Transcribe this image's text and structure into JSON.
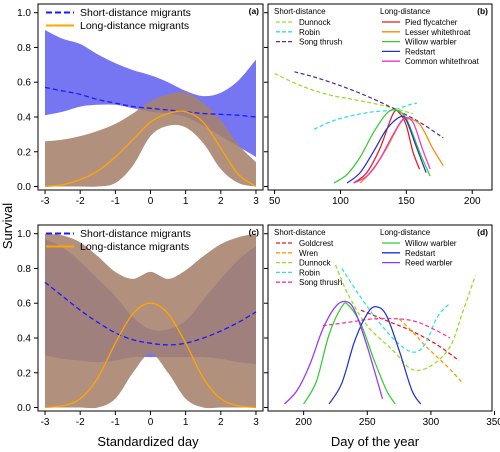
{
  "figure": {
    "ylabel": "Survival",
    "xlabel_left": "Standardized day",
    "xlabel_right": "Day of the year"
  },
  "chart_data": [
    {
      "type": "area",
      "panel_label": "(a)",
      "xlim": [
        -3.2,
        3.2
      ],
      "ylim": [
        -0.02,
        1.05
      ],
      "xticks": [
        -3,
        -2,
        -1,
        0,
        1,
        2,
        3
      ],
      "yticks": [
        0.0,
        0.2,
        0.4,
        0.6,
        0.8,
        1.0
      ],
      "x": [
        -3,
        -2.5,
        -2,
        -1.5,
        -1,
        -0.5,
        0,
        0.5,
        1,
        1.5,
        2,
        2.5,
        3
      ],
      "series": [
        {
          "name": "Short-distance migrants",
          "color": "#1a1aff",
          "dash": true,
          "band_color": "#6f6ff2",
          "values": [
            0.57,
            0.55,
            0.53,
            0.5,
            0.48,
            0.46,
            0.45,
            0.44,
            0.43,
            0.42,
            0.415,
            0.41,
            0.4
          ],
          "lower": [
            0.41,
            0.43,
            0.46,
            0.47,
            0.47,
            0.45,
            0.43,
            0.42,
            0.4,
            0.35,
            0.29,
            0.23,
            0.17
          ],
          "upper": [
            0.9,
            0.85,
            0.82,
            0.76,
            0.71,
            0.67,
            0.64,
            0.6,
            0.55,
            0.52,
            0.54,
            0.61,
            0.73
          ]
        },
        {
          "name": "Long-distance migrants",
          "color": "#ffa500",
          "dash": false,
          "band_color": "#a6826b",
          "values": [
            0.0,
            0.01,
            0.04,
            0.09,
            0.17,
            0.27,
            0.37,
            0.42,
            0.43,
            0.37,
            0.22,
            0.07,
            0.0
          ],
          "lower": [
            0.0,
            0.0,
            0.0,
            0.0,
            0.02,
            0.12,
            0.29,
            0.35,
            0.34,
            0.25,
            0.1,
            0.02,
            0.0
          ],
          "upper": [
            0.26,
            0.27,
            0.29,
            0.32,
            0.36,
            0.42,
            0.49,
            0.53,
            0.54,
            0.48,
            0.38,
            0.24,
            0.14
          ]
        }
      ]
    },
    {
      "type": "line",
      "panel_label": "(b)",
      "xlim": [
        45,
        215
      ],
      "ylim": [
        -0.02,
        1.05
      ],
      "xticks": [
        50,
        100,
        150,
        200
      ],
      "yticks": [
        0.0,
        0.2,
        0.4,
        0.6,
        0.8,
        1.0
      ],
      "legend_headers": [
        "Short-distance",
        "Long-distance"
      ],
      "series": [
        {
          "name": "Dunnock",
          "group": "short",
          "color": "#99dd22",
          "dash": true,
          "x": [
            50,
            70,
            90,
            110,
            130,
            150,
            155
          ],
          "values": [
            0.65,
            0.58,
            0.53,
            0.5,
            0.47,
            0.43,
            0.42
          ]
        },
        {
          "name": "Robin",
          "group": "short",
          "color": "#33ddee",
          "dash": true,
          "x": [
            80,
            95,
            110,
            125,
            140,
            152,
            158
          ],
          "values": [
            0.33,
            0.38,
            0.41,
            0.43,
            0.44,
            0.47,
            0.48
          ]
        },
        {
          "name": "Song thrush",
          "group": "short",
          "color": "#5a2d9c",
          "dash": true,
          "x": [
            65,
            80,
            100,
            120,
            140,
            160,
            178
          ],
          "values": [
            0.66,
            0.63,
            0.58,
            0.52,
            0.45,
            0.37,
            0.28
          ]
        },
        {
          "name": "Pied flycatcher",
          "group": "long",
          "color": "#e41a1c",
          "dash": false,
          "x": [
            110,
            120,
            130,
            140,
            145,
            150,
            155,
            160
          ],
          "values": [
            0.02,
            0.08,
            0.22,
            0.42,
            0.42,
            0.35,
            0.2,
            0.1
          ]
        },
        {
          "name": "Lesser whitethroat",
          "group": "long",
          "color": "#ff8800",
          "dash": false,
          "x": [
            115,
            125,
            135,
            145,
            150,
            160,
            170,
            178
          ],
          "values": [
            0.02,
            0.1,
            0.22,
            0.36,
            0.39,
            0.36,
            0.22,
            0.12
          ]
        },
        {
          "name": "Willow warbler",
          "group": "long",
          "color": "#33cc33",
          "dash": false,
          "x": [
            95,
            105,
            115,
            125,
            135,
            142,
            150,
            160,
            168
          ],
          "values": [
            0.02,
            0.07,
            0.17,
            0.31,
            0.42,
            0.44,
            0.39,
            0.2,
            0.06
          ]
        },
        {
          "name": "Redstart",
          "group": "long",
          "color": "#2233cc",
          "dash": false,
          "x": [
            105,
            115,
            125,
            135,
            145,
            150,
            158,
            165
          ],
          "values": [
            0.02,
            0.08,
            0.2,
            0.33,
            0.4,
            0.38,
            0.22,
            0.08
          ]
        },
        {
          "name": "Common whitethroat",
          "group": "long",
          "color": "#ee33cc",
          "dash": false,
          "x": [
            110,
            120,
            130,
            140,
            148,
            155,
            162,
            168
          ],
          "values": [
            0.02,
            0.06,
            0.16,
            0.3,
            0.39,
            0.37,
            0.22,
            0.1
          ]
        }
      ]
    },
    {
      "type": "area",
      "panel_label": "(c)",
      "xlim": [
        -3.2,
        3.2
      ],
      "ylim": [
        -0.02,
        1.05
      ],
      "xticks": [
        -3,
        -2,
        -1,
        0,
        1,
        2,
        3
      ],
      "yticks": [
        0.0,
        0.2,
        0.4,
        0.6,
        0.8,
        1.0
      ],
      "x": [
        -3,
        -2.5,
        -2,
        -1.5,
        -1,
        -0.5,
        0,
        0.5,
        1,
        1.5,
        2,
        2.5,
        3
      ],
      "series": [
        {
          "name": "Short-distance migrants",
          "color": "#1a1aff",
          "dash": true,
          "band_color": "#6f6ff2",
          "values": [
            0.72,
            0.64,
            0.56,
            0.49,
            0.43,
            0.39,
            0.37,
            0.36,
            0.37,
            0.4,
            0.44,
            0.49,
            0.55
          ],
          "lower": [
            0.3,
            0.28,
            0.27,
            0.26,
            0.27,
            0.29,
            0.29,
            0.29,
            0.29,
            0.29,
            0.28,
            0.26,
            0.25
          ],
          "upper": [
            0.97,
            0.92,
            0.84,
            0.74,
            0.64,
            0.52,
            0.45,
            0.45,
            0.5,
            0.62,
            0.74,
            0.85,
            0.93
          ]
        },
        {
          "name": "Long-distance migrants",
          "color": "#ffa500",
          "dash": false,
          "band_color": "#a6826b",
          "values": [
            0.0,
            0.01,
            0.05,
            0.17,
            0.37,
            0.54,
            0.6,
            0.54,
            0.37,
            0.17,
            0.05,
            0.01,
            0.0
          ],
          "lower": [
            0.0,
            0.0,
            0.0,
            0.0,
            0.05,
            0.2,
            0.31,
            0.2,
            0.05,
            0.0,
            0.0,
            0.0,
            0.0
          ],
          "upper": [
            1.0,
            0.99,
            0.95,
            0.87,
            0.78,
            0.74,
            0.78,
            0.74,
            0.79,
            0.87,
            0.94,
            0.98,
            1.0
          ]
        }
      ]
    },
    {
      "type": "line",
      "panel_label": "(d)",
      "xlim": [
        172,
        348
      ],
      "ylim": [
        -0.02,
        1.05
      ],
      "xticks": [
        200,
        250,
        300,
        350
      ],
      "yticks": [
        0.0,
        0.2,
        0.4,
        0.6,
        0.8,
        1.0
      ],
      "legend_headers": [
        "Short-distance",
        "Long-distance"
      ],
      "series": [
        {
          "name": "Goldcrest",
          "group": "short",
          "color": "#e41a1c",
          "dash": true,
          "x": [
            245,
            265,
            285,
            305,
            322
          ],
          "values": [
            0.56,
            0.5,
            0.44,
            0.36,
            0.27
          ]
        },
        {
          "name": "Wren",
          "group": "short",
          "color": "#ff9900",
          "dash": true,
          "x": [
            275,
            285,
            295,
            305,
            315,
            325
          ],
          "values": [
            0.51,
            0.44,
            0.36,
            0.29,
            0.22,
            0.14
          ]
        },
        {
          "name": "Dunnock",
          "group": "short",
          "color": "#99dd22",
          "dash": true,
          "x": [
            225,
            235,
            250,
            270,
            285,
            300,
            315,
            325,
            335
          ],
          "values": [
            0.82,
            0.65,
            0.47,
            0.33,
            0.22,
            0.24,
            0.35,
            0.55,
            0.76
          ]
        },
        {
          "name": "Robin",
          "group": "short",
          "color": "#33ddee",
          "dash": true,
          "x": [
            230,
            250,
            270,
            285,
            295,
            305,
            315
          ],
          "values": [
            0.8,
            0.58,
            0.4,
            0.32,
            0.36,
            0.52,
            0.6
          ]
        },
        {
          "name": "Song thrush",
          "group": "short",
          "color": "#ff3399",
          "dash": true,
          "x": [
            215,
            235,
            255,
            275,
            290,
            305,
            315
          ],
          "values": [
            0.47,
            0.49,
            0.51,
            0.51,
            0.49,
            0.44,
            0.4
          ]
        },
        {
          "name": "Willow warbler",
          "group": "long",
          "color": "#33cc33",
          "dash": false,
          "x": [
            200,
            210,
            220,
            230,
            235,
            245,
            255,
            265,
            272
          ],
          "values": [
            0.02,
            0.15,
            0.42,
            0.58,
            0.59,
            0.48,
            0.28,
            0.1,
            0.02
          ]
        },
        {
          "name": "Redstart",
          "group": "long",
          "color": "#2233cc",
          "dash": false,
          "x": [
            220,
            230,
            240,
            250,
            257,
            265,
            275,
            285,
            292
          ],
          "values": [
            0.02,
            0.14,
            0.38,
            0.54,
            0.58,
            0.53,
            0.33,
            0.1,
            0.02
          ]
        },
        {
          "name": "Reed warbler",
          "group": "long",
          "color": "#9933ff",
          "dash": false,
          "x": [
            185,
            195,
            205,
            215,
            225,
            233,
            240,
            250,
            262
          ],
          "values": [
            0.02,
            0.1,
            0.25,
            0.45,
            0.58,
            0.61,
            0.56,
            0.35,
            0.05
          ]
        }
      ]
    }
  ]
}
